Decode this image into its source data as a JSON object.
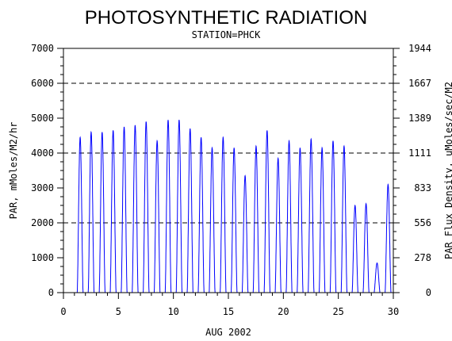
{
  "chart_data": {
    "type": "line",
    "title": "PHOTOSYNTHETIC RADIATION",
    "subtitle": "STATION=PHCK",
    "xlabel": "AUG 2002",
    "ylabel": "PAR, mMoles/M2/hr",
    "y2label": "PAR Flux Density, uMoles/sec/M2",
    "xlim": [
      0,
      30
    ],
    "ylim": [
      0,
      7000
    ],
    "x_ticks": [
      0,
      5,
      10,
      15,
      20,
      25,
      30
    ],
    "y_ticks": [
      0,
      1000,
      2000,
      3000,
      4000,
      5000,
      6000,
      7000
    ],
    "y2_ticks": [
      0,
      278,
      556,
      833,
      1111,
      1389,
      1667,
      1944
    ],
    "grid_lines_y": [
      2000,
      4000,
      6000
    ],
    "line_color": "#0000ff",
    "daily_peaks": [
      {
        "day": 1,
        "peak": 4450
      },
      {
        "day": 2,
        "peak": 4600
      },
      {
        "day": 3,
        "peak": 4600
      },
      {
        "day": 4,
        "peak": 4650
      },
      {
        "day": 5,
        "peak": 4750
      },
      {
        "day": 6,
        "peak": 4800
      },
      {
        "day": 7,
        "peak": 4900
      },
      {
        "day": 8,
        "peak": 4350
      },
      {
        "day": 9,
        "peak": 4950
      },
      {
        "day": 10,
        "peak": 4950
      },
      {
        "day": 11,
        "peak": 4700
      },
      {
        "day": 12,
        "peak": 4450
      },
      {
        "day": 13,
        "peak": 4150
      },
      {
        "day": 14,
        "peak": 4450
      },
      {
        "day": 15,
        "peak": 4150
      },
      {
        "day": 16,
        "peak": 3350
      },
      {
        "day": 17,
        "peak": 4200
      },
      {
        "day": 18,
        "peak": 4650
      },
      {
        "day": 19,
        "peak": 3850
      },
      {
        "day": 20,
        "peak": 4350
      },
      {
        "day": 21,
        "peak": 4150
      },
      {
        "day": 22,
        "peak": 4400
      },
      {
        "day": 23,
        "peak": 4150
      },
      {
        "day": 24,
        "peak": 4350
      },
      {
        "day": 25,
        "peak": 4200
      },
      {
        "day": 26,
        "peak": 2500
      },
      {
        "day": 27,
        "peak": 2550
      },
      {
        "day": 28,
        "peak": 850
      },
      {
        "day": 29,
        "peak": 3100
      }
    ]
  }
}
